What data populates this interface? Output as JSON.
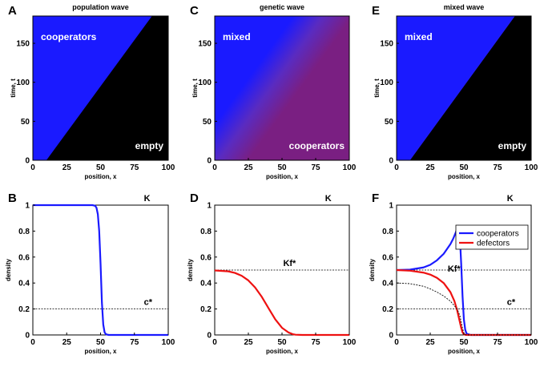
{
  "colors": {
    "cooperators": "#1a1aff",
    "defectors": "#ee1111",
    "empty": "#000000",
    "mixed": "#7a1f82"
  },
  "panels": [
    {
      "letter": "A",
      "title": "population wave",
      "kind": "heatmap",
      "pattern": "population",
      "xlabel": "position, x",
      "ylabel": "time, t",
      "x_ticks": [
        "0",
        "25",
        "50",
        "75",
        "100"
      ],
      "y_ticks": [
        "0",
        "50",
        "100",
        "150"
      ],
      "region_labels": [
        {
          "id": "top",
          "text": "cooperators"
        },
        {
          "id": "bottom",
          "text": "empty"
        }
      ]
    },
    {
      "letter": "C",
      "title": "genetic wave",
      "kind": "heatmap",
      "pattern": "genetic",
      "xlabel": "position, x",
      "ylabel": "time, t",
      "x_ticks": [
        "0",
        "25",
        "50",
        "75",
        "100"
      ],
      "y_ticks": [
        "0",
        "50",
        "100",
        "150"
      ],
      "region_labels": [
        {
          "id": "top",
          "text": "mixed"
        },
        {
          "id": "bottom",
          "text": "cooperators"
        }
      ]
    },
    {
      "letter": "E",
      "title": "mixed wave",
      "kind": "heatmap",
      "pattern": "mixed",
      "xlabel": "position, x",
      "ylabel": "time, t",
      "x_ticks": [
        "0",
        "25",
        "50",
        "75",
        "100"
      ],
      "y_ticks": [
        "0",
        "50",
        "100",
        "150"
      ],
      "region_labels": [
        {
          "id": "top",
          "text": "mixed"
        },
        {
          "id": "bottom",
          "text": "empty"
        }
      ]
    },
    {
      "letter": "B",
      "title": "",
      "kind": "line",
      "xlabel": "position, x",
      "ylabel": "density",
      "x_ticks": [
        "0",
        "25",
        "50",
        "75",
        "100"
      ],
      "y_ticks": [
        "0",
        "0.2",
        "0.4",
        "0.6",
        "0.8",
        "1"
      ],
      "ref_lines": [
        {
          "y": 1.0,
          "label": "K"
        },
        {
          "y": 0.2,
          "label": "c*"
        }
      ],
      "legend": null
    },
    {
      "letter": "D",
      "title": "",
      "kind": "line",
      "xlabel": "position, x",
      "ylabel": "density",
      "x_ticks": [
        "0",
        "25",
        "50",
        "75",
        "100"
      ],
      "y_ticks": [
        "0",
        "0.2",
        "0.4",
        "0.6",
        "0.8",
        "1"
      ],
      "ref_lines": [
        {
          "y": 1.0,
          "label": "K"
        },
        {
          "y": 0.5,
          "label": "Kf*"
        }
      ],
      "legend": null
    },
    {
      "letter": "F",
      "title": "",
      "kind": "line",
      "xlabel": "position, x",
      "ylabel": "density",
      "x_ticks": [
        "0",
        "25",
        "50",
        "75",
        "100"
      ],
      "y_ticks": [
        "0",
        "0.2",
        "0.4",
        "0.6",
        "0.8",
        "1"
      ],
      "ref_lines": [
        {
          "y": 1.0,
          "label": "K"
        },
        {
          "y": 0.5,
          "label": "Kf*"
        },
        {
          "y": 0.2,
          "label": "c*"
        }
      ],
      "legend": [
        "cooperators",
        "defectors"
      ]
    }
  ],
  "chart_data": [
    {
      "type": "heatmap",
      "title": "population wave",
      "panel": "A",
      "xlabel": "position, x",
      "ylabel": "time, t",
      "xlim": [
        0,
        100
      ],
      "ylim": [
        0,
        185
      ],
      "description_values": {
        "front_start_x": 10,
        "front_end_x": 88
      },
      "regions": [
        "cooperators",
        "empty"
      ]
    },
    {
      "type": "heatmap",
      "title": "genetic wave",
      "panel": "C",
      "xlabel": "position, x",
      "ylabel": "time, t",
      "xlim": [
        0,
        100
      ],
      "ylim": [
        0,
        185
      ],
      "description_values": {
        "front_start_x": 10,
        "front_end_x": 88
      },
      "regions": [
        "mixed",
        "cooperators"
      ]
    },
    {
      "type": "heatmap",
      "title": "mixed wave",
      "panel": "E",
      "xlabel": "position, x",
      "ylabel": "time, t",
      "xlim": [
        0,
        100
      ],
      "ylim": [
        0,
        185
      ],
      "description_values": {
        "front_start_x": 10,
        "front_end_x": 88
      },
      "regions": [
        "mixed",
        "empty"
      ]
    },
    {
      "type": "line",
      "panel": "B",
      "xlabel": "position, x",
      "ylabel": "density",
      "xlim": [
        0,
        100
      ],
      "ylim": [
        0,
        1
      ],
      "series": [
        {
          "name": "cooperators",
          "color": "#1a1aff",
          "x": [
            0,
            10,
            20,
            30,
            40,
            44,
            46,
            47,
            48,
            49,
            50,
            51,
            52,
            53,
            54,
            56,
            60,
            70,
            80,
            90,
            100
          ],
          "y": [
            1,
            1,
            1,
            1,
            1,
            1,
            0.995,
            0.98,
            0.93,
            0.8,
            0.55,
            0.25,
            0.08,
            0.02,
            0.005,
            0,
            0,
            0,
            0,
            0,
            0
          ]
        }
      ],
      "ref_lines": [
        {
          "y": 1.0,
          "label": "K"
        },
        {
          "y": 0.2,
          "label": "c*"
        }
      ]
    },
    {
      "type": "line",
      "panel": "D",
      "xlabel": "position, x",
      "ylabel": "density",
      "xlim": [
        0,
        100
      ],
      "ylim": [
        0,
        1
      ],
      "series": [
        {
          "name": "defectors",
          "color": "#ee1111",
          "x": [
            0,
            10,
            15,
            20,
            25,
            30,
            35,
            40,
            45,
            50,
            55,
            58,
            60,
            65,
            70,
            80,
            90,
            100
          ],
          "y": [
            0.497,
            0.49,
            0.478,
            0.456,
            0.42,
            0.366,
            0.293,
            0.206,
            0.12,
            0.055,
            0.018,
            0.006,
            0.002,
            0,
            0,
            0,
            0,
            0
          ]
        }
      ],
      "ref_lines": [
        {
          "y": 1.0,
          "label": "K"
        },
        {
          "y": 0.5,
          "label": "Kf*"
        }
      ]
    },
    {
      "type": "line",
      "panel": "F",
      "xlabel": "position, x",
      "ylabel": "density",
      "xlim": [
        0,
        100
      ],
      "ylim": [
        0,
        1
      ],
      "series": [
        {
          "name": "cooperators",
          "color": "#1a1aff",
          "x": [
            0,
            10,
            20,
            25,
            30,
            35,
            40,
            42,
            44,
            45,
            46,
            47,
            48,
            49,
            50,
            51,
            52,
            55,
            60,
            70,
            80,
            90,
            100
          ],
          "y": [
            0.5,
            0.503,
            0.52,
            0.54,
            0.575,
            0.625,
            0.7,
            0.74,
            0.79,
            0.82,
            0.84,
            0.76,
            0.55,
            0.3,
            0.12,
            0.04,
            0.01,
            0,
            0,
            0,
            0,
            0,
            0
          ]
        },
        {
          "name": "defectors",
          "color": "#ee1111",
          "x": [
            0,
            10,
            20,
            25,
            30,
            35,
            40,
            43,
            45,
            47,
            48,
            49,
            50,
            51,
            52,
            55,
            60,
            70,
            80,
            90,
            100
          ],
          "y": [
            0.5,
            0.495,
            0.48,
            0.465,
            0.44,
            0.4,
            0.33,
            0.26,
            0.19,
            0.1,
            0.055,
            0.02,
            0.005,
            0.001,
            0,
            0,
            0,
            0,
            0,
            0,
            0
          ]
        },
        {
          "name": "total (dashed)",
          "color": "#000000",
          "x": [
            0,
            10,
            20,
            25,
            30,
            35,
            40,
            45,
            47,
            48,
            49,
            50,
            51,
            52,
            55,
            100
          ],
          "y": [
            0.4,
            0.395,
            0.375,
            0.355,
            0.33,
            0.3,
            0.26,
            0.2,
            0.15,
            0.1,
            0.05,
            0.015,
            0.003,
            0,
            0,
            0
          ]
        }
      ],
      "ref_lines": [
        {
          "y": 1.0,
          "label": "K"
        },
        {
          "y": 0.5,
          "label": "Kf*"
        },
        {
          "y": 0.2,
          "label": "c*"
        }
      ],
      "legend": [
        "cooperators",
        "defectors"
      ]
    }
  ]
}
